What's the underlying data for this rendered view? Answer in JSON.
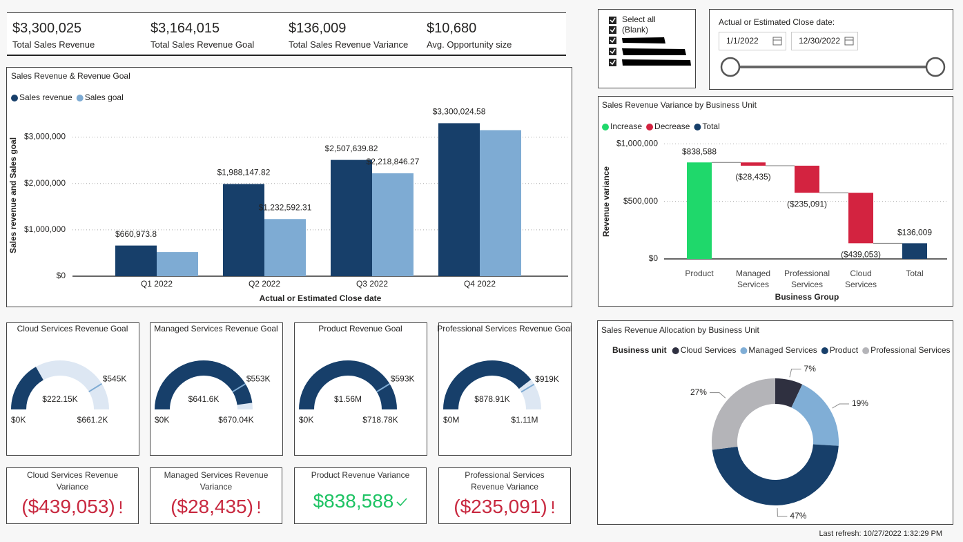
{
  "kpis": [
    {
      "value": "$3,300,025",
      "label": "Total Sales Revenue"
    },
    {
      "value": "$3,164,015",
      "label": "Total Sales Revenue Goal"
    },
    {
      "value": "$136,009",
      "label": "Total Sales Revenue Variance"
    },
    {
      "value": "$10,680",
      "label": "Avg. Opportunity size"
    }
  ],
  "slicer": {
    "items": [
      "Select all",
      "(Blank)"
    ]
  },
  "date_filter": {
    "title": "Actual or Estimated Close date:",
    "start": "1/1/2022",
    "end": "12/30/2022"
  },
  "chart_data": [
    {
      "type": "bar",
      "title": "Sales Revenue & Revenue Goal",
      "categories": [
        "Q1 2022",
        "Q2 2022",
        "Q3 2022",
        "Q4 2022"
      ],
      "series": [
        {
          "name": "Sales revenue",
          "color": "#173f6a",
          "values": [
            660973.8,
            1988147.82,
            2507639.82,
            3300024.58
          ],
          "value_labels": [
            "$660,973.8",
            "$1,988,147.82",
            "$2,507,639.82",
            "$3,300,024.58"
          ]
        },
        {
          "name": "Sales goal",
          "color": "#7eabd3",
          "values": [
            520000,
            1232592.31,
            2218846.27,
            3150000
          ],
          "value_labels": [
            null,
            "$1,232,592.31",
            "$2,218,846.27",
            null
          ]
        }
      ],
      "xlabel": "Actual or Estimated Close date",
      "ylabel": "Sales revenue and Sales goal",
      "ylim": [
        0,
        3500000
      ],
      "yticks": [
        {
          "value": 0,
          "label": "$0"
        },
        {
          "value": 1000000,
          "label": "$1,000,000"
        },
        {
          "value": 2000000,
          "label": "$2,000,000"
        },
        {
          "value": 3000000,
          "label": "$3,000,000"
        }
      ],
      "grid": true,
      "legend": "top-left"
    },
    {
      "type": "waterfall",
      "title": "Sales Revenue Variance by Business Unit",
      "categories": [
        "Product",
        "Managed Services",
        "Professional Services",
        "Cloud Services",
        "Total"
      ],
      "values": [
        838588,
        -28435,
        -235091,
        -439053,
        136009
      ],
      "value_labels": [
        "$838,588",
        "($28,435)",
        "($235,091)",
        "($439,053)",
        "$136,009"
      ],
      "legend_items": [
        {
          "name": "Increase",
          "color": "#1fd86b"
        },
        {
          "name": "Decrease",
          "color": "#d32340"
        },
        {
          "name": "Total",
          "color": "#173f6a"
        }
      ],
      "xlabel": "Business Group",
      "ylabel": "Revenue variance",
      "ylim": [
        0,
        1080000
      ],
      "yticks": [
        {
          "value": 0,
          "label": "$0"
        },
        {
          "value": 500000,
          "label": "$500,000"
        },
        {
          "value": 1000000,
          "label": "$1,000,000"
        }
      ],
      "grid": true
    },
    {
      "type": "gauge",
      "title": "Cloud Services Revenue Goal",
      "value": {
        "value": 222150,
        "label": "$222.15K"
      },
      "target": {
        "value": 545000,
        "label": "$545K"
      },
      "min": {
        "value": 0,
        "label": "$0K"
      },
      "max": {
        "value": 661200,
        "label": "$661.2K"
      },
      "color": "#173f6a",
      "track_color": "#dde7f3",
      "target_color": "#7eabd3"
    },
    {
      "type": "gauge",
      "title": "Managed Services Revenue Goal",
      "value": {
        "value": 641600,
        "label": "$641.6K"
      },
      "target": {
        "value": 553000,
        "label": "$553K"
      },
      "min": {
        "value": 0,
        "label": "$0K"
      },
      "max": {
        "value": 670040,
        "label": "$670.04K"
      },
      "color": "#173f6a",
      "track_color": "#dde7f3",
      "target_color": "#7eabd3"
    },
    {
      "type": "gauge",
      "title": "Product Revenue Goal",
      "value": {
        "value": 1560000,
        "label": "$1.56M"
      },
      "target": {
        "value": 593000,
        "label": "$593K"
      },
      "min": {
        "value": 0,
        "label": "$0K"
      },
      "max": {
        "value": 718780,
        "label": "$718.78K"
      },
      "color": "#173f6a",
      "track_color": "#dde7f3",
      "target_color": "#7eabd3"
    },
    {
      "type": "gauge",
      "title": "Professional Services Revenue Goal",
      "value": {
        "value": 878910,
        "label": "$878.91K"
      },
      "target": {
        "value": 919000,
        "label": "$919K"
      },
      "min": {
        "value": 0,
        "label": "$0M"
      },
      "max": {
        "value": 1110000,
        "label": "$1.11M"
      },
      "color": "#173f6a",
      "track_color": "#dde7f3",
      "target_color": "#7eabd3"
    },
    {
      "type": "donut",
      "title": "Sales Revenue Allocation by Business Unit",
      "legend_title": "Business unit",
      "categories": [
        "Cloud Services",
        "Managed Services",
        "Product",
        "Professional Services"
      ],
      "values": [
        7,
        19,
        47,
        27
      ],
      "value_labels": [
        "7%",
        "19%",
        "47%",
        "27%"
      ],
      "colors": [
        "#2f3040",
        "#80aed6",
        "#173f6a",
        "#b4b4b8"
      ]
    }
  ],
  "variance_cards": [
    {
      "title": "Cloud Services Revenue Variance",
      "value": "($439,053)",
      "color": "#c8283f"
    },
    {
      "title": "Managed Services Revenue Variance",
      "value": "($28,435)",
      "color": "#c8283f"
    },
    {
      "title": "Product Revenue Variance",
      "value": "$838,588",
      "color": "#1ec364"
    },
    {
      "title": "Professional Services Revenue Variance",
      "value": "($235,091)",
      "color": "#c8283f"
    }
  ],
  "footer": "Last refresh: 10/27/2022 1:32:29 PM"
}
